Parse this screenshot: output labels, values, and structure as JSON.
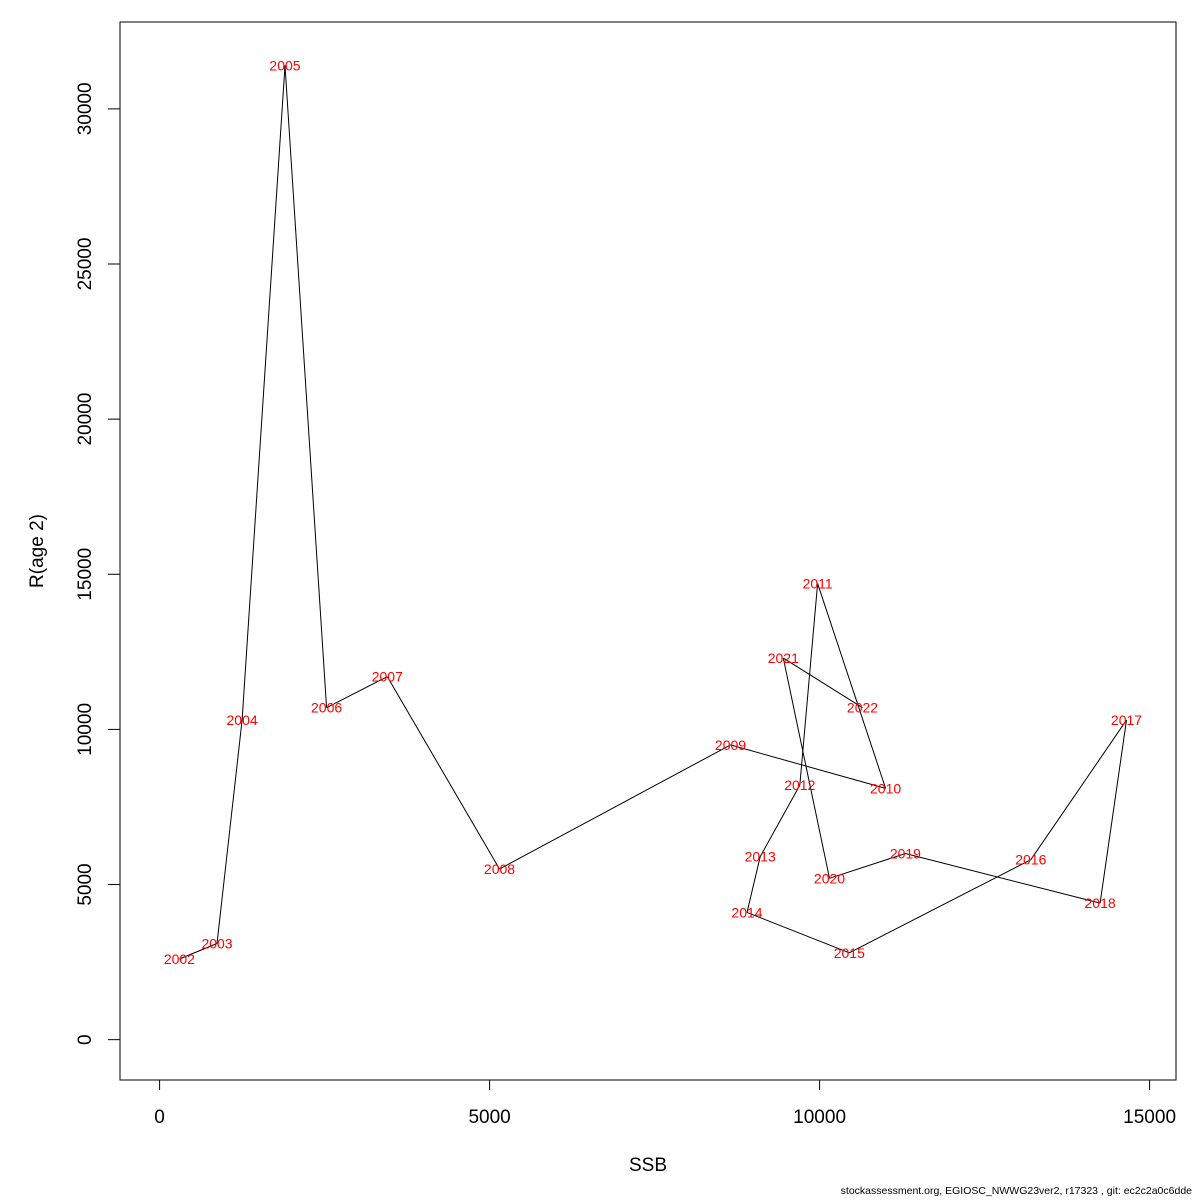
{
  "chart_data": {
    "type": "line",
    "xlabel": "SSB",
    "ylabel": "R(age 2)",
    "xlim": [
      -600,
      15400
    ],
    "ylim": [
      -1300,
      32800
    ],
    "xticks": [
      0,
      5000,
      10000,
      15000
    ],
    "yticks": [
      0,
      5000,
      10000,
      15000,
      20000,
      25000,
      30000
    ],
    "grid": false,
    "legend": "none",
    "line_color": "#000000",
    "label_color": "#ff0000",
    "points": [
      {
        "label": "2002",
        "x": 300,
        "y": 2600
      },
      {
        "label": "2003",
        "x": 870,
        "y": 3100
      },
      {
        "label": "2004",
        "x": 1250,
        "y": 10300
      },
      {
        "label": "2005",
        "x": 1900,
        "y": 31400
      },
      {
        "label": "2006",
        "x": 2530,
        "y": 10700
      },
      {
        "label": "2007",
        "x": 3450,
        "y": 11700
      },
      {
        "label": "2008",
        "x": 5150,
        "y": 5500
      },
      {
        "label": "2009",
        "x": 8650,
        "y": 9500
      },
      {
        "label": "2010",
        "x": 11000,
        "y": 8100
      },
      {
        "label": "2011",
        "x": 9970,
        "y": 14700
      },
      {
        "label": "2012",
        "x": 9700,
        "y": 8200
      },
      {
        "label": "2013",
        "x": 9100,
        "y": 5900
      },
      {
        "label": "2014",
        "x": 8900,
        "y": 4100
      },
      {
        "label": "2015",
        "x": 10450,
        "y": 2800
      },
      {
        "label": "2016",
        "x": 13200,
        "y": 5800
      },
      {
        "label": "2017",
        "x": 14650,
        "y": 10300
      },
      {
        "label": "2018",
        "x": 14250,
        "y": 4400
      },
      {
        "label": "2019",
        "x": 11300,
        "y": 6000
      },
      {
        "label": "2020",
        "x": 10150,
        "y": 5200
      },
      {
        "label": "2021",
        "x": 9450,
        "y": 12300
      },
      {
        "label": "2022",
        "x": 10650,
        "y": 10700
      }
    ]
  },
  "footer_text": "stockassessment.org, EGIOSC_NWWG23ver2, r17323 , git: ec2c2a0c6dde"
}
